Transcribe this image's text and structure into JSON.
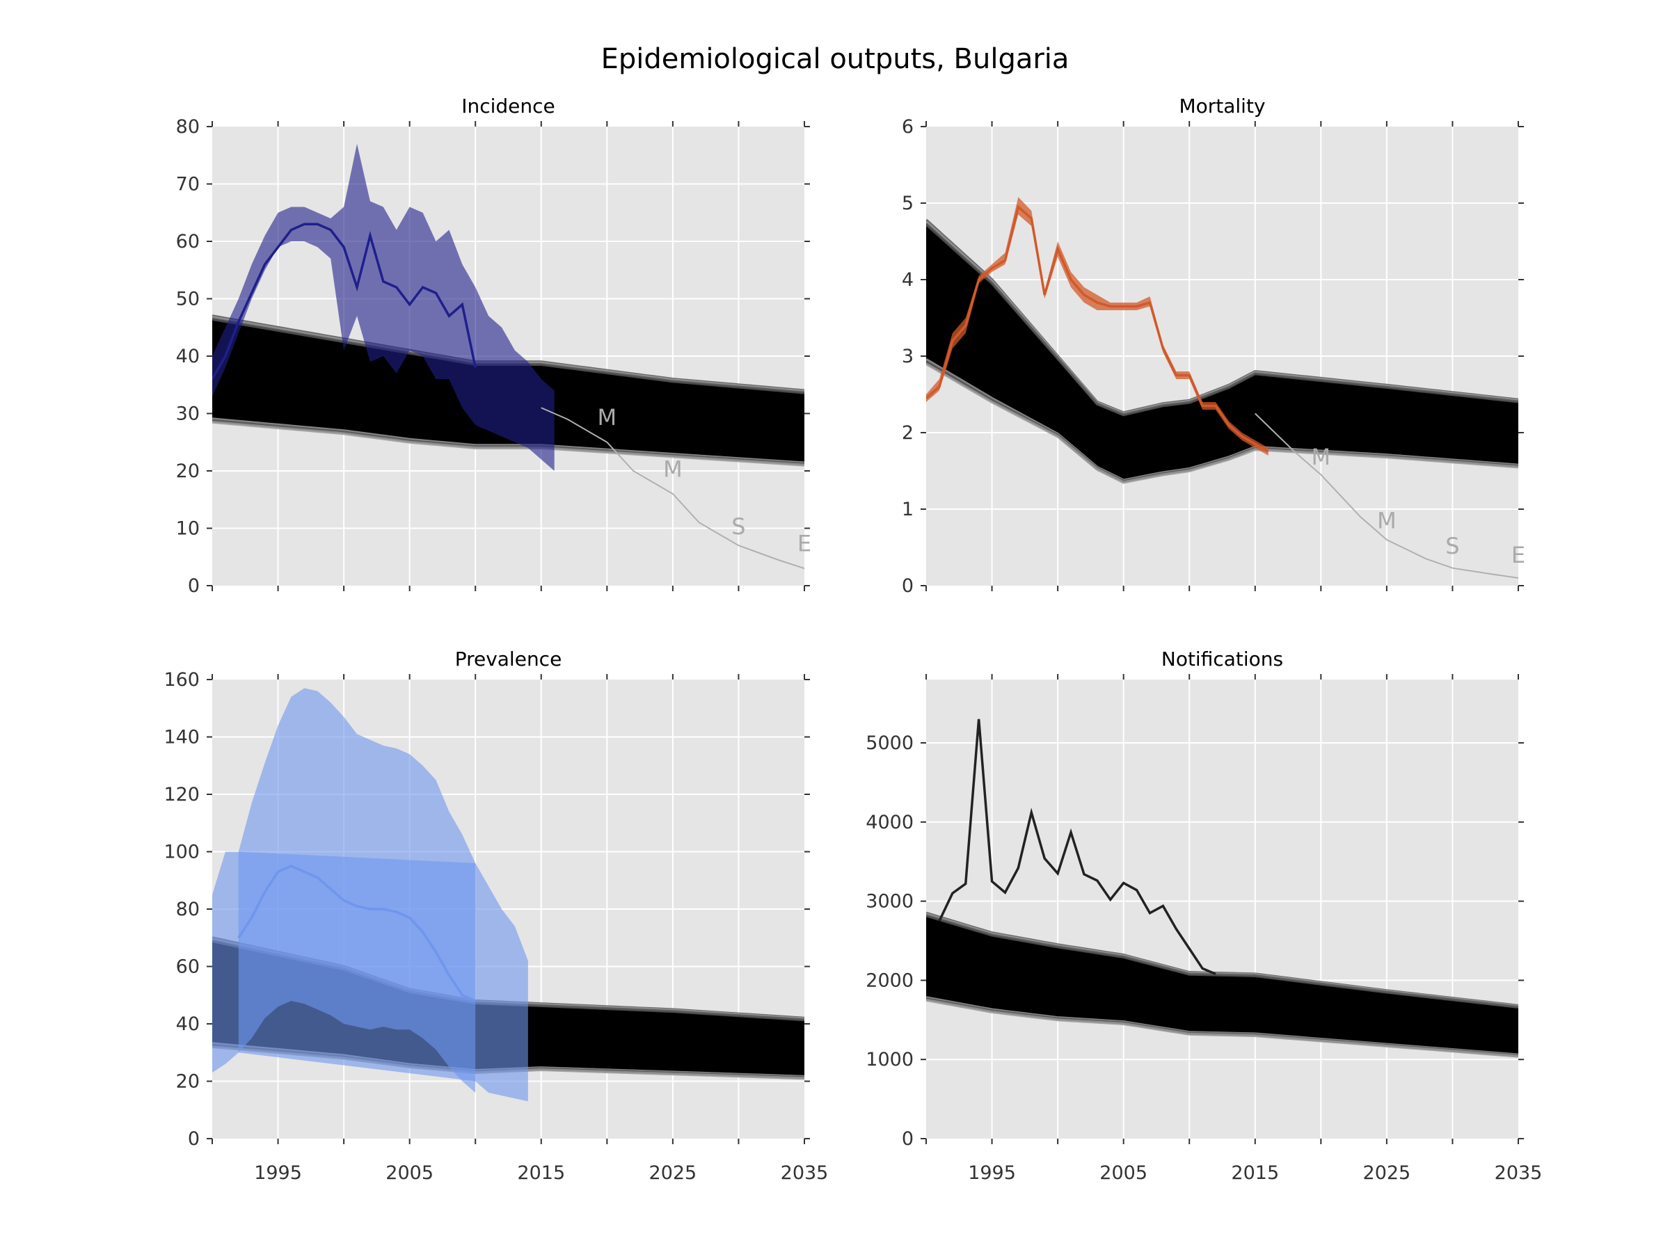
{
  "title": "Epidemiological outputs, Bulgaria",
  "colors": {
    "background": "#e5e5e5",
    "incidence": "#1f1f8c",
    "mortality": "#d2592a",
    "prevalence": "#6f96ee",
    "notifications": "#222222",
    "projection": "#b0b0b0"
  },
  "chart_data": [
    {
      "type": "line",
      "title": "Incidence",
      "xlim": [
        1990,
        2035
      ],
      "ylim": [
        0,
        80
      ],
      "xticks": [
        1995,
        2005,
        2015,
        2025,
        2035
      ],
      "yticks": [
        0,
        10,
        20,
        30,
        40,
        50,
        60,
        70,
        80
      ],
      "series": [
        {
          "role": "observed",
          "x": [
            1990,
            1991,
            1992,
            1993,
            1994,
            1995,
            1996,
            1997,
            1998,
            1999,
            2000,
            2001,
            2002,
            2003,
            2004,
            2005,
            2006,
            2007,
            2008,
            2009,
            2010
          ],
          "values": [
            36,
            40,
            46,
            51,
            56,
            59,
            62,
            63,
            63,
            62,
            59,
            52,
            61,
            53,
            52,
            49,
            52,
            51,
            47,
            49,
            38
          ],
          "band_lower": [
            33,
            38,
            44,
            50,
            55,
            59,
            60,
            60,
            59,
            57,
            41,
            47,
            39,
            40,
            37,
            41,
            40,
            36,
            36,
            31,
            28
          ],
          "band_upper": [
            40,
            45,
            50,
            56,
            61,
            65,
            66,
            66,
            65,
            64,
            66,
            77,
            67,
            66,
            62,
            66,
            65,
            60,
            62,
            56,
            52
          ]
        },
        {
          "role": "band-tail",
          "x": [
            2010,
            2011,
            2012,
            2013,
            2014,
            2015,
            2016
          ],
          "band_lower": [
            28,
            27,
            26,
            25,
            24,
            22,
            20
          ],
          "band_upper": [
            52,
            47,
            45,
            41,
            39,
            36,
            34
          ]
        },
        {
          "role": "model-envelope",
          "x": [
            1990,
            2000,
            2005,
            2010,
            2015,
            2025,
            2035
          ],
          "upper": [
            47,
            43,
            41,
            39,
            39,
            36,
            34
          ],
          "lower": [
            28.5,
            26.5,
            25,
            24,
            24,
            22.5,
            21
          ]
        },
        {
          "role": "projection",
          "x": [
            2015,
            2017,
            2020,
            2022,
            2025,
            2027,
            2030,
            2033,
            2035
          ],
          "values": [
            31,
            29,
            25,
            20,
            16,
            11,
            7,
            4.5,
            3
          ],
          "labels": [
            {
              "text": "M",
              "x": 2020,
              "y": 28
            },
            {
              "text": "M",
              "x": 2025,
              "y": 19
            },
            {
              "text": "S",
              "x": 2030,
              "y": 9
            },
            {
              "text": "E",
              "x": 2035,
              "y": 6
            }
          ]
        }
      ]
    },
    {
      "type": "line",
      "title": "Mortality",
      "xlim": [
        1990,
        2035
      ],
      "ylim": [
        0,
        6
      ],
      "xticks": [
        1995,
        2005,
        2015,
        2025,
        2035
      ],
      "yticks": [
        0,
        1,
        2,
        3,
        4,
        5,
        6
      ],
      "series": [
        {
          "role": "observed",
          "x": [
            1990,
            1991,
            1992,
            1993,
            1994,
            1995,
            1996,
            1997,
            1998,
            1999,
            2000,
            2001,
            2002,
            2003,
            2004,
            2005,
            2006,
            2007,
            2008,
            2009,
            2010,
            2011,
            2012,
            2013,
            2014,
            2015,
            2016
          ],
          "values": [
            2.45,
            2.6,
            3.2,
            3.4,
            4.0,
            4.15,
            4.25,
            4.95,
            4.8,
            3.8,
            4.4,
            4.0,
            3.8,
            3.7,
            3.65,
            3.65,
            3.65,
            3.7,
            3.1,
            2.75,
            2.75,
            2.35,
            2.35,
            2.1,
            1.95,
            1.85,
            1.75
          ],
          "band_lower": [
            2.4,
            2.55,
            3.1,
            3.3,
            3.95,
            4.1,
            4.2,
            4.85,
            4.7,
            3.75,
            4.3,
            3.9,
            3.7,
            3.6,
            3.6,
            3.6,
            3.6,
            3.65,
            3.05,
            2.7,
            2.7,
            2.3,
            2.3,
            2.05,
            1.9,
            1.8,
            1.7
          ],
          "band_upper": [
            2.5,
            2.7,
            3.3,
            3.5,
            4.05,
            4.2,
            4.35,
            5.08,
            4.9,
            3.85,
            4.5,
            4.1,
            3.9,
            3.8,
            3.7,
            3.7,
            3.7,
            3.78,
            3.15,
            2.8,
            2.8,
            2.4,
            2.4,
            2.15,
            2.0,
            1.9,
            1.8
          ]
        },
        {
          "role": "model-envelope",
          "x": [
            1990,
            1995,
            2000,
            2003,
            2005,
            2008,
            2010,
            2013,
            2015,
            2025,
            2035
          ],
          "upper": [
            4.78,
            4.0,
            3.0,
            2.4,
            2.26,
            2.38,
            2.42,
            2.62,
            2.8,
            2.62,
            2.43
          ],
          "lower": [
            2.9,
            2.4,
            1.95,
            1.52,
            1.35,
            1.45,
            1.5,
            1.65,
            1.78,
            1.68,
            1.55
          ]
        },
        {
          "role": "projection",
          "x": [
            2015,
            2018,
            2020,
            2023,
            2025,
            2028,
            2030,
            2033,
            2035
          ],
          "values": [
            2.25,
            1.75,
            1.45,
            0.9,
            0.6,
            0.35,
            0.23,
            0.15,
            0.1
          ],
          "labels": [
            {
              "text": "M",
              "x": 2020,
              "y": 1.58
            },
            {
              "text": "M",
              "x": 2025,
              "y": 0.75
            },
            {
              "text": "S",
              "x": 2030,
              "y": 0.42
            },
            {
              "text": "E",
              "x": 2035,
              "y": 0.3
            }
          ]
        }
      ]
    },
    {
      "type": "line",
      "title": "Prevalence",
      "xlim": [
        1990,
        2035
      ],
      "ylim": [
        0,
        160
      ],
      "xticks": [
        1995,
        2005,
        2015,
        2025,
        2035
      ],
      "yticks": [
        0,
        20,
        40,
        60,
        80,
        100,
        120,
        140,
        160
      ],
      "series": [
        {
          "role": "observed",
          "x": [
            1992,
            1993,
            1994,
            1995,
            1996,
            1997,
            1998,
            1999,
            2000,
            2001,
            2002,
            2003,
            2004,
            2005,
            2006,
            2007,
            2008,
            2009,
            2010
          ],
          "values": [
            70,
            77,
            86,
            93,
            95,
            93,
            91,
            87,
            83,
            81,
            80,
            80,
            79,
            77,
            72,
            65,
            57,
            50,
            48
          ],
          "band_lower": [
            30,
            35,
            42,
            46,
            48,
            47,
            45,
            43,
            40,
            39,
            38,
            39,
            38,
            38,
            35,
            31,
            25,
            20,
            16
          ],
          "band_upper": [
            100,
            117,
            131,
            144,
            154,
            157,
            156,
            152,
            147,
            141,
            139,
            137,
            136,
            134,
            130,
            125,
            114,
            106,
            96
          ]
        },
        {
          "role": "band-edges",
          "x": [
            1990,
            1991,
            1992,
            2010,
            2011,
            2012,
            2013,
            2014
          ],
          "band_lower": [
            23,
            26,
            30,
            20,
            16,
            15,
            14,
            13
          ],
          "band_upper": [
            85,
            100,
            100,
            96,
            88,
            80,
            74,
            62
          ]
        },
        {
          "role": "model-envelope",
          "x": [
            1990,
            2000,
            2005,
            2010,
            2015,
            2025,
            2035
          ],
          "upper": [
            70,
            60,
            52,
            48,
            47,
            45,
            42
          ],
          "lower": [
            32,
            28,
            25,
            23,
            24,
            22.5,
            21
          ]
        }
      ]
    },
    {
      "type": "line",
      "title": "Notifications",
      "xlim": [
        1990,
        2035
      ],
      "ylim": [
        0,
        5800
      ],
      "xticks": [
        1995,
        2005,
        2015,
        2025,
        2035
      ],
      "yticks": [
        0,
        1000,
        2000,
        3000,
        4000,
        5000
      ],
      "series": [
        {
          "role": "observed",
          "x": [
            1991,
            1992,
            1993,
            1994,
            1995,
            1996,
            1997,
            1998,
            1999,
            2000,
            2001,
            2002,
            2003,
            2004,
            2005,
            2006,
            2007,
            2008,
            2009,
            2010,
            2011,
            2012
          ],
          "values": [
            2750,
            3100,
            3220,
            5300,
            3250,
            3110,
            3420,
            4120,
            3540,
            3350,
            3870,
            3340,
            3260,
            3020,
            3230,
            3140,
            2850,
            2940,
            2650,
            2400,
            2150,
            2080
          ]
        },
        {
          "role": "model-envelope",
          "x": [
            1990,
            1995,
            2000,
            2005,
            2010,
            2015,
            2025,
            2035
          ],
          "upper": [
            2850,
            2600,
            2450,
            2320,
            2100,
            2080,
            1870,
            1680
          ],
          "lower": [
            1750,
            1600,
            1500,
            1450,
            1320,
            1300,
            1170,
            1040
          ]
        }
      ]
    }
  ]
}
